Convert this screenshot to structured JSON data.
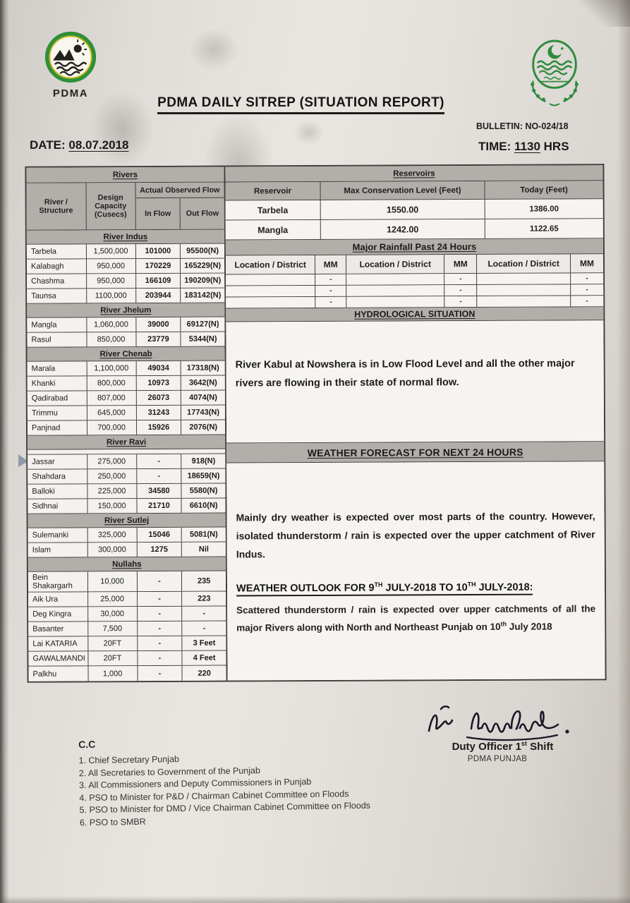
{
  "colors": {
    "paper": "#e4e0db",
    "band_gray": "#b2afaa",
    "crest_green": "#2e8b3d",
    "ink": "#1d1c1a"
  },
  "header": {
    "logo_label": "PDMA",
    "title": "PDMA DAILY SITREP (SITUATION REPORT)",
    "bulletin": "BULLETIN: NO-024/18",
    "date_label": "DATE:",
    "date_value": "08.07.2018",
    "time_label": "TIME:",
    "time_value": "1130",
    "time_unit": "HRS"
  },
  "rivers": {
    "title": "Rivers",
    "col_structure": "River / Structure",
    "col_capacity": "Design Capacity (Cusecs)",
    "col_observed": "Actual Observed Flow",
    "col_in": "In Flow",
    "col_out": "Out Flow",
    "groups": [
      {
        "label": "River Indus",
        "rows": [
          [
            "Tarbela",
            "1,500,000",
            "101000",
            "95500(N)"
          ],
          [
            "Kalabagh",
            "950,000",
            "170229",
            "165229(N)"
          ],
          [
            "Chashma",
            "950,000",
            "166109",
            "190209(N)"
          ],
          [
            "Taunsa",
            "1100,000",
            "203944",
            "183142(N)"
          ]
        ]
      },
      {
        "label": "River Jhelum",
        "rows": [
          [
            "Mangla",
            "1,060,000",
            "39000",
            "69127(N)"
          ],
          [
            "Rasul",
            "850,000",
            "23779",
            "5344(N)"
          ]
        ]
      },
      {
        "label": "River Chenab",
        "rows": [
          [
            "Marala",
            "1,100,000",
            "49034",
            "17318(N)"
          ],
          [
            "Khanki",
            "800,000",
            "10973",
            "3642(N)"
          ],
          [
            "Qadirabad",
            "807,000",
            "26073",
            "4074(N)"
          ],
          [
            "Trimmu",
            "645,000",
            "31243",
            "17743(N)"
          ],
          [
            "Panjnad",
            "700,000",
            "15926",
            "2076(N)"
          ]
        ]
      },
      {
        "label": "River Ravi",
        "tall": true,
        "rows": [
          [
            "Jassar",
            "275,000",
            "-",
            "918(N)"
          ],
          [
            "Shahdara",
            "250,000",
            "-",
            "18659(N)"
          ],
          [
            "Balloki",
            "225,000",
            "34580",
            "5580(N)"
          ],
          [
            "Sidhnai",
            "150,000",
            "21710",
            "6610(N)"
          ]
        ]
      },
      {
        "label": "River Sutlej",
        "rows": [
          [
            "Sulemanki",
            "325,000",
            "15046",
            "5081(N)"
          ],
          [
            "Islam",
            "300,000",
            "1275",
            "Nil"
          ]
        ]
      },
      {
        "label": "Nullahs",
        "rows": [
          [
            "Bein Shakargarh",
            "10,000",
            "-",
            "235"
          ],
          [
            "Aik Ura",
            "25,000",
            "-",
            "223"
          ],
          [
            "Deg Kingra",
            "30,000",
            "-",
            "-"
          ],
          [
            "Basanter",
            "7,500",
            "-",
            "-"
          ],
          [
            "Lai KATARIA",
            "20FT",
            "-",
            "3 Feet"
          ],
          [
            "GAWALMANDI",
            "20FT",
            "-",
            "4 Feet"
          ],
          [
            "Palkhu",
            "1,000",
            "-",
            "220"
          ]
        ]
      }
    ]
  },
  "reservoirs": {
    "title": "Reservoirs",
    "col_reservoir": "Reservoir",
    "col_max": "Max Conservation Level (Feet)",
    "col_today": "Today (Feet)",
    "rows": [
      {
        "name": "Tarbela",
        "max": "1550.00",
        "today": "1386.00"
      },
      {
        "name": "Mangla",
        "max": "1242.00",
        "today": "1122.65"
      }
    ]
  },
  "rainfall": {
    "title": "Major Rainfall Past 24 Hours",
    "col_location": "Location / District",
    "col_mm": "MM",
    "dash": "-",
    "empty_rows": 3
  },
  "hydro": {
    "title": "HYDROLOGICAL SITUATION",
    "body": "River Kabul at Nowshera is in Low Flood Level and all the other major rivers are flowing in their state of normal flow."
  },
  "forecast": {
    "title": "WEATHER FORECAST FOR NEXT 24 HOURS",
    "body": "Mainly dry weather is expected over most parts of the country. However, isolated thunderstorm / rain is expected over the upper catchment of River Indus."
  },
  "outlook": {
    "heading_parts": [
      "WEATHER OUTLOOK FOR 9",
      "TH",
      " JULY-2018 TO 10",
      "TH",
      " JULY-2018:"
    ],
    "body_parts": [
      "Scattered thunderstorm / rain is expected over upper catchments of all the major Rivers along with North and Northeast Punjab on 10",
      "th",
      " July 2018"
    ]
  },
  "signoff": {
    "role_parts": [
      "Duty Officer 1",
      "st",
      " Shift"
    ],
    "org": "PDMA PUNJAB"
  },
  "cc": {
    "label": "C.C",
    "items": [
      "1. Chief Secretary Punjab",
      "2. All Secretaries to Government of the Punjab",
      "3. All Commissioners and Deputy Commissioners in Punjab",
      "4. PSO to Minister for P&D / Chairman Cabinet Committee on Floods",
      "5. PSO to Minister for DMD / Vice Chairman Cabinet Committee on Floods",
      "6. PSO to SMBR"
    ]
  }
}
